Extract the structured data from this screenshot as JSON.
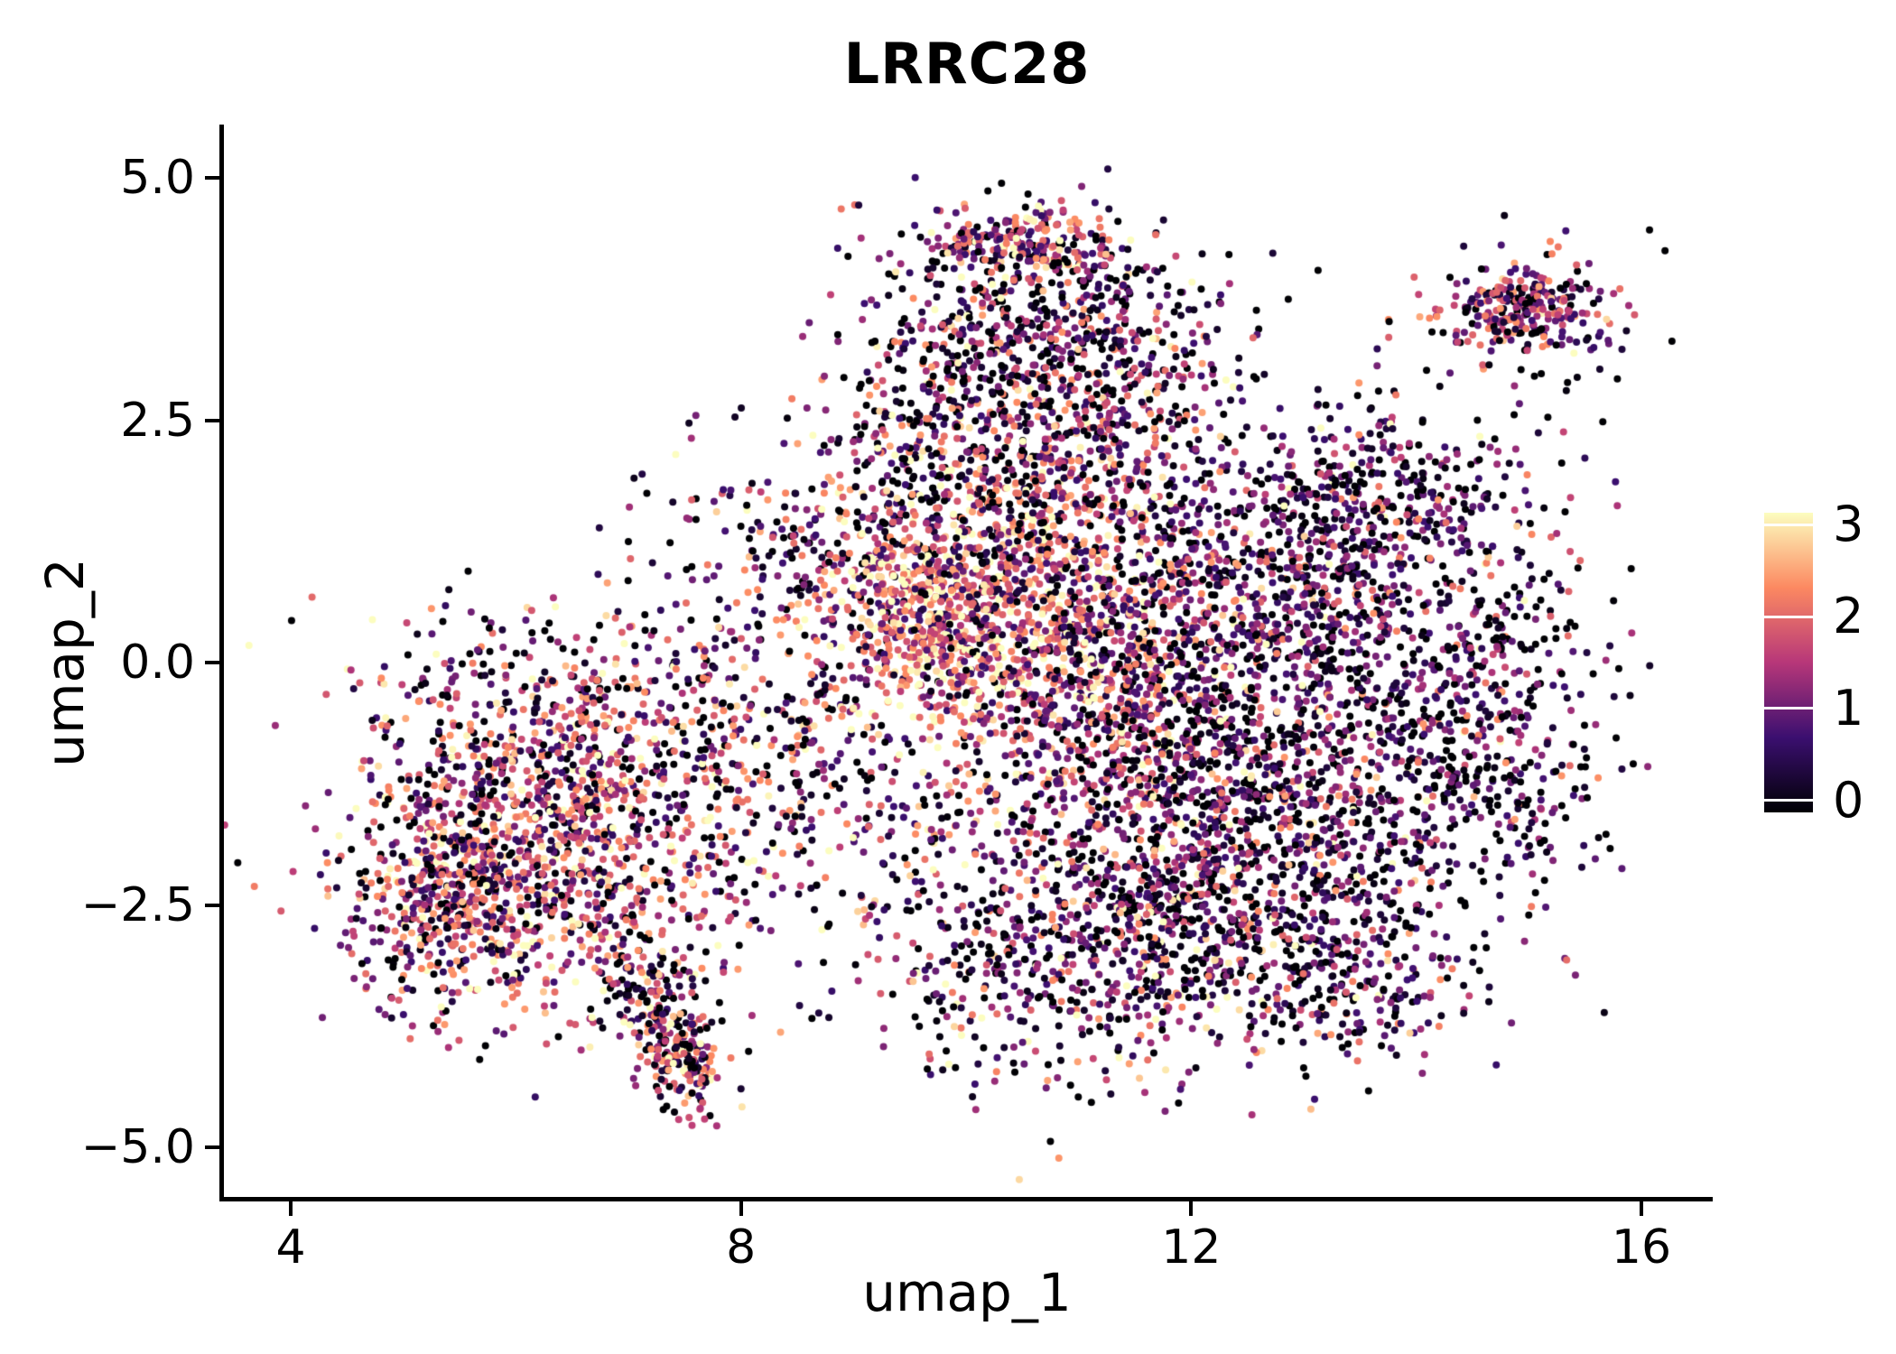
{
  "chart_data": {
    "type": "scatter",
    "title": "LRRC28",
    "xlabel": "umap_1",
    "ylabel": "umap_2",
    "x_range": [
      4,
      16
    ],
    "y_range": [
      -5,
      5
    ],
    "grid": false,
    "background": "#ffffff",
    "x_ticks": [
      {
        "value": 4,
        "label": "4"
      },
      {
        "value": 8,
        "label": "8"
      },
      {
        "value": 12,
        "label": "12"
      },
      {
        "value": 16,
        "label": "16"
      }
    ],
    "y_ticks": [
      {
        "value": 5,
        "label": "5.0"
      },
      {
        "value": 2.5,
        "label": "2.5"
      },
      {
        "value": 0,
        "label": "0.0"
      },
      {
        "value": -2.5,
        "label": "−2.5"
      },
      {
        "value": -5,
        "label": "−5.0"
      }
    ],
    "colorbar": {
      "min": 0,
      "max": 3,
      "position": "right",
      "ticks": [
        {
          "value": 3,
          "label": "3"
        },
        {
          "value": 2,
          "label": "2"
        },
        {
          "value": 1,
          "label": "1"
        },
        {
          "value": 0,
          "label": "0"
        }
      ]
    },
    "colormap": [
      "#000004",
      "#3b0f70",
      "#b73779",
      "#fc8961",
      "#fcfdbf"
    ],
    "point_radius": 4,
    "value_jitter": 0.9,
    "seed": 42,
    "clusters": [
      {
        "name": "left-core",
        "cx": 6.2,
        "cy": -2.1,
        "sx": 0.85,
        "sy": 0.75,
        "rot": 0,
        "n": 950,
        "weights": [
          0.24,
          0.28,
          0.38,
          0.1
        ]
      },
      {
        "name": "left-upper",
        "cx": 6.6,
        "cy": -0.9,
        "sx": 0.9,
        "sy": 0.5,
        "rot": 0,
        "n": 420,
        "weights": [
          0.3,
          0.27,
          0.33,
          0.1
        ]
      },
      {
        "name": "left-west",
        "cx": 5.35,
        "cy": -2.4,
        "sx": 0.45,
        "sy": 0.65,
        "rot": 0,
        "n": 300,
        "weights": [
          0.3,
          0.3,
          0.3,
          0.1
        ]
      },
      {
        "name": "left-top-scatter",
        "cx": 6.3,
        "cy": -0.05,
        "sx": 1.0,
        "sy": 0.42,
        "rot": 0,
        "n": 130,
        "weights": [
          0.45,
          0.25,
          0.22,
          0.08
        ]
      },
      {
        "name": "bottom-tail",
        "cx": 7.45,
        "cy": -4.05,
        "sx": 0.18,
        "sy": 0.33,
        "rot": 25,
        "n": 200,
        "weights": [
          0.34,
          0.22,
          0.32,
          0.12
        ]
      },
      {
        "name": "tail-neck",
        "cx": 7.25,
        "cy": -3.35,
        "sx": 0.28,
        "sy": 0.25,
        "rot": 0,
        "n": 90,
        "weights": [
          0.4,
          0.25,
          0.25,
          0.1
        ]
      },
      {
        "name": "mid-bridge",
        "cx": 8.6,
        "cy": -0.7,
        "sx": 0.85,
        "sy": 1.05,
        "rot": 0,
        "n": 360,
        "weights": [
          0.4,
          0.26,
          0.24,
          0.1
        ]
      },
      {
        "name": "mid-upper",
        "cx": 8.9,
        "cy": 1.35,
        "sx": 0.85,
        "sy": 0.55,
        "rot": 0,
        "n": 250,
        "weights": [
          0.5,
          0.28,
          0.16,
          0.06
        ]
      },
      {
        "name": "warm-core",
        "cx": 9.7,
        "cy": 0.55,
        "sx": 0.35,
        "sy": 0.4,
        "rot": 0,
        "n": 300,
        "weights": [
          0.05,
          0.2,
          0.48,
          0.27
        ]
      },
      {
        "name": "center-warm",
        "cx": 10.4,
        "cy": 0.35,
        "sx": 0.8,
        "sy": 0.9,
        "rot": 0,
        "n": 880,
        "weights": [
          0.15,
          0.27,
          0.4,
          0.18
        ]
      },
      {
        "name": "center-magenta",
        "cx": 11.25,
        "cy": 0.1,
        "sx": 0.55,
        "sy": 1.0,
        "rot": 0,
        "n": 500,
        "weights": [
          0.2,
          0.3,
          0.36,
          0.14
        ]
      },
      {
        "name": "center-upper",
        "cx": 10.3,
        "cy": 1.9,
        "sx": 0.9,
        "sy": 0.5,
        "rot": 0,
        "n": 340,
        "weights": [
          0.36,
          0.3,
          0.25,
          0.09
        ]
      },
      {
        "name": "top-cluster",
        "cx": 10.7,
        "cy": 3.5,
        "sx": 0.75,
        "sy": 0.55,
        "rot": 0,
        "n": 540,
        "weights": [
          0.42,
          0.3,
          0.21,
          0.07
        ]
      },
      {
        "name": "top-hot",
        "cx": 10.5,
        "cy": 4.3,
        "sx": 0.42,
        "sy": 0.18,
        "rot": 0,
        "n": 200,
        "weights": [
          0.12,
          0.33,
          0.43,
          0.12
        ]
      },
      {
        "name": "top-left-edge",
        "cx": 9.8,
        "cy": 2.9,
        "sx": 0.45,
        "sy": 0.6,
        "rot": 0,
        "n": 150,
        "weights": [
          0.55,
          0.25,
          0.15,
          0.05
        ]
      },
      {
        "name": "bridge-top",
        "cx": 11.4,
        "cy": 2.6,
        "sx": 0.5,
        "sy": 0.45,
        "rot": 0,
        "n": 140,
        "weights": [
          0.45,
          0.3,
          0.2,
          0.05
        ]
      },
      {
        "name": "right-upper",
        "cx": 13.0,
        "cy": 0.9,
        "sx": 1.0,
        "sy": 0.75,
        "rot": 0,
        "n": 820,
        "weights": [
          0.46,
          0.38,
          0.13,
          0.03
        ]
      },
      {
        "name": "right-mid",
        "cx": 13.0,
        "cy": -0.9,
        "sx": 1.1,
        "sy": 0.8,
        "rot": 0,
        "n": 860,
        "weights": [
          0.5,
          0.36,
          0.11,
          0.03
        ]
      },
      {
        "name": "right-lower",
        "cx": 12.3,
        "cy": -2.5,
        "sx": 1.0,
        "sy": 0.7,
        "rot": 0,
        "n": 670,
        "weights": [
          0.5,
          0.34,
          0.12,
          0.04
        ]
      },
      {
        "name": "bottom-mid",
        "cx": 10.8,
        "cy": -3.1,
        "sx": 0.9,
        "sy": 0.6,
        "rot": 0,
        "n": 410,
        "weights": [
          0.45,
          0.3,
          0.18,
          0.07
        ]
      },
      {
        "name": "right-east",
        "cx": 14.6,
        "cy": -0.8,
        "sx": 0.6,
        "sy": 1.0,
        "rot": 0,
        "n": 330,
        "weights": [
          0.55,
          0.33,
          0.1,
          0.02
        ]
      },
      {
        "name": "right-upper-2",
        "cx": 13.6,
        "cy": 1.8,
        "sx": 0.7,
        "sy": 0.4,
        "rot": 0,
        "n": 215,
        "weights": [
          0.46,
          0.38,
          0.13,
          0.03
        ]
      },
      {
        "name": "transition",
        "cx": 11.8,
        "cy": -1.4,
        "sx": 0.5,
        "sy": 1.2,
        "rot": 0,
        "n": 330,
        "weights": [
          0.35,
          0.3,
          0.25,
          0.1
        ]
      },
      {
        "name": "bottom-right",
        "cx": 13.4,
        "cy": -3.3,
        "sx": 0.6,
        "sy": 0.4,
        "rot": 0,
        "n": 165,
        "weights": [
          0.5,
          0.35,
          0.1,
          0.05
        ]
      },
      {
        "name": "topright-satellite",
        "cx": 15.0,
        "cy": 3.65,
        "sx": 0.38,
        "sy": 0.26,
        "rot": 0,
        "n": 260,
        "weights": [
          0.3,
          0.36,
          0.29,
          0.05
        ]
      },
      {
        "name": "topright-halo",
        "cx": 14.9,
        "cy": 3.25,
        "sx": 0.6,
        "sy": 0.45,
        "rot": 0,
        "n": 40,
        "weights": [
          0.4,
          0.3,
          0.3,
          0.0
        ]
      },
      {
        "name": "sparse-right",
        "cx": 12.2,
        "cy": -0.2,
        "sx": 1.9,
        "sy": 1.9,
        "rot": 0,
        "n": 160,
        "weights": [
          0.5,
          0.3,
          0.15,
          0.05
        ]
      },
      {
        "name": "sparse-center",
        "cx": 9.6,
        "cy": -2.0,
        "sx": 1.4,
        "sy": 1.1,
        "rot": 0,
        "n": 130,
        "weights": [
          0.45,
          0.25,
          0.2,
          0.1
        ]
      }
    ]
  }
}
